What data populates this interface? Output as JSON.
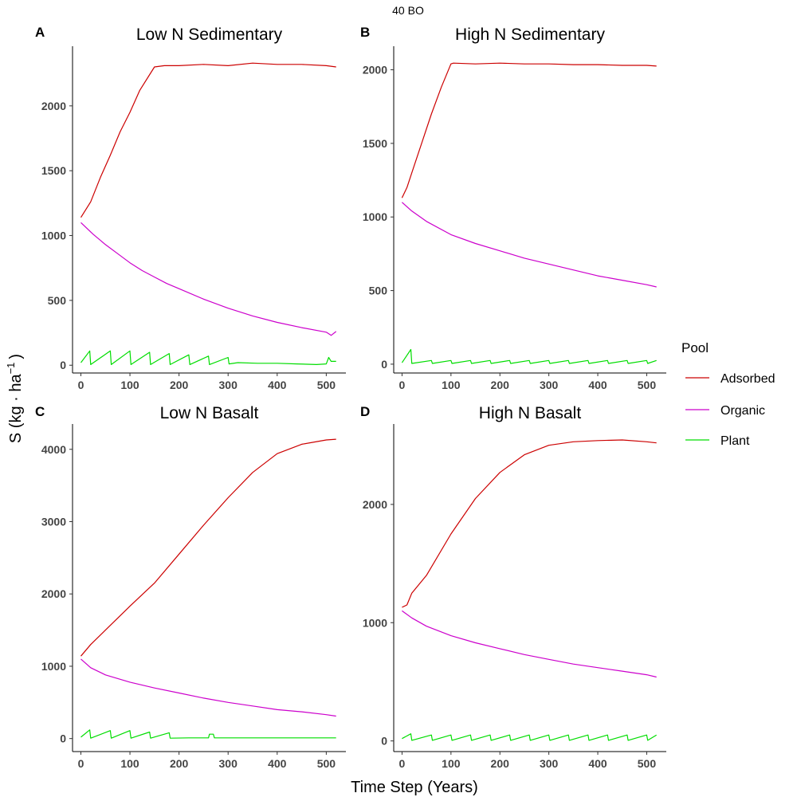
{
  "figure": {
    "supertitle": "40 BO",
    "xlabel": "Time Step (Years)",
    "ylabel_main": "S (kg · ha",
    "ylabel_sup": "−1",
    "ylabel_close": ")"
  },
  "legend": {
    "title": "Pool",
    "items": [
      {
        "label": "Adsorbed",
        "color": "#cc0000"
      },
      {
        "label": "Organic",
        "color": "#cc00cc"
      },
      {
        "label": "Plant",
        "color": "#00dd00"
      }
    ]
  },
  "chart_data": [
    {
      "type": "line",
      "tag": "A",
      "title": "Low N Sedimentary",
      "xlim": [
        -17,
        540
      ],
      "ylim": [
        -60,
        2460
      ],
      "xticks": [
        0,
        100,
        200,
        300,
        400,
        500
      ],
      "yticks": [
        0,
        500,
        1000,
        1500,
        2000
      ],
      "series": [
        {
          "name": "Adsorbed",
          "x": [
            0,
            20,
            40,
            60,
            80,
            100,
            120,
            150,
            170,
            200,
            250,
            300,
            350,
            400,
            450,
            500,
            520
          ],
          "y": [
            1140,
            1260,
            1450,
            1620,
            1800,
            1950,
            2120,
            2300,
            2310,
            2310,
            2320,
            2310,
            2330,
            2320,
            2320,
            2310,
            2300
          ]
        },
        {
          "name": "Organic",
          "x": [
            0,
            25,
            50,
            75,
            100,
            125,
            150,
            175,
            200,
            250,
            300,
            350,
            400,
            450,
            500,
            510,
            520
          ],
          "y": [
            1100,
            1010,
            930,
            860,
            790,
            730,
            680,
            630,
            590,
            510,
            440,
            380,
            330,
            290,
            255,
            230,
            260
          ]
        },
        {
          "name": "Plant",
          "x": [
            0,
            18,
            20,
            60,
            62,
            100,
            102,
            140,
            142,
            180,
            182,
            220,
            222,
            260,
            262,
            300,
            302,
            320,
            360,
            400,
            440,
            480,
            500,
            505,
            510,
            520
          ],
          "y": [
            20,
            110,
            5,
            110,
            5,
            110,
            5,
            100,
            5,
            90,
            5,
            80,
            5,
            70,
            5,
            60,
            10,
            20,
            15,
            15,
            10,
            5,
            10,
            60,
            30,
            30
          ]
        }
      ]
    },
    {
      "type": "line",
      "tag": "B",
      "title": "High N Sedimentary",
      "xlim": [
        -17,
        540
      ],
      "ylim": [
        -60,
        2160
      ],
      "xticks": [
        0,
        100,
        200,
        300,
        400,
        500
      ],
      "yticks": [
        0,
        500,
        1000,
        1500,
        2000
      ],
      "series": [
        {
          "name": "Adsorbed",
          "x": [
            0,
            10,
            20,
            40,
            60,
            80,
            100,
            105,
            150,
            200,
            250,
            300,
            350,
            400,
            450,
            500,
            520
          ],
          "y": [
            1130,
            1200,
            1300,
            1500,
            1700,
            1880,
            2040,
            2045,
            2040,
            2045,
            2040,
            2040,
            2035,
            2035,
            2030,
            2030,
            2025
          ]
        },
        {
          "name": "Organic",
          "x": [
            0,
            20,
            50,
            100,
            150,
            200,
            250,
            300,
            350,
            400,
            450,
            500,
            520
          ],
          "y": [
            1100,
            1040,
            970,
            880,
            820,
            770,
            720,
            680,
            640,
            600,
            570,
            540,
            525
          ]
        },
        {
          "name": "Plant",
          "x": [
            0,
            18,
            20,
            60,
            62,
            100,
            102,
            140,
            142,
            180,
            182,
            220,
            222,
            260,
            262,
            300,
            302,
            340,
            342,
            380,
            382,
            420,
            422,
            460,
            462,
            500,
            502,
            520
          ],
          "y": [
            10,
            100,
            5,
            25,
            5,
            25,
            5,
            25,
            5,
            25,
            5,
            25,
            5,
            25,
            5,
            25,
            5,
            25,
            5,
            25,
            5,
            25,
            5,
            25,
            5,
            25,
            5,
            25
          ]
        }
      ]
    },
    {
      "type": "line",
      "tag": "C",
      "title": "Low N Basalt",
      "xlim": [
        -17,
        540
      ],
      "ylim": [
        -180,
        4350
      ],
      "xticks": [
        0,
        100,
        200,
        300,
        400,
        500
      ],
      "yticks": [
        0,
        1000,
        2000,
        3000,
        4000
      ],
      "series": [
        {
          "name": "Adsorbed",
          "x": [
            0,
            20,
            50,
            100,
            150,
            200,
            250,
            300,
            350,
            400,
            450,
            500,
            520
          ],
          "y": [
            1140,
            1300,
            1500,
            1830,
            2150,
            2550,
            2950,
            3330,
            3680,
            3940,
            4070,
            4130,
            4140
          ]
        },
        {
          "name": "Organic",
          "x": [
            0,
            20,
            50,
            100,
            150,
            200,
            250,
            300,
            350,
            400,
            450,
            500,
            520
          ],
          "y": [
            1100,
            980,
            880,
            780,
            700,
            630,
            560,
            500,
            450,
            400,
            370,
            330,
            310
          ]
        },
        {
          "name": "Plant",
          "x": [
            0,
            18,
            20,
            60,
            62,
            100,
            102,
            140,
            142,
            180,
            182,
            220,
            222,
            260,
            262,
            270,
            272,
            300,
            350,
            400,
            450,
            500,
            520
          ],
          "y": [
            20,
            120,
            5,
            110,
            5,
            110,
            5,
            90,
            5,
            80,
            5,
            10,
            10,
            10,
            60,
            60,
            10,
            10,
            10,
            10,
            10,
            10,
            10
          ]
        }
      ]
    },
    {
      "type": "line",
      "tag": "D",
      "title": "High N Basalt",
      "xlim": [
        -17,
        540
      ],
      "ylim": [
        -90,
        2680
      ],
      "xticks": [
        0,
        100,
        200,
        300,
        400,
        500
      ],
      "yticks": [
        0,
        1000,
        2000
      ],
      "series": [
        {
          "name": "Adsorbed",
          "x": [
            0,
            10,
            20,
            50,
            100,
            150,
            200,
            250,
            300,
            350,
            400,
            450,
            500,
            520
          ],
          "y": [
            1130,
            1150,
            1250,
            1400,
            1750,
            2050,
            2270,
            2420,
            2500,
            2530,
            2540,
            2545,
            2530,
            2520
          ]
        },
        {
          "name": "Organic",
          "x": [
            0,
            20,
            50,
            100,
            150,
            200,
            250,
            300,
            350,
            400,
            450,
            500,
            520
          ],
          "y": [
            1100,
            1040,
            970,
            890,
            830,
            780,
            730,
            690,
            650,
            620,
            590,
            560,
            540
          ]
        },
        {
          "name": "Plant",
          "x": [
            0,
            18,
            20,
            60,
            62,
            100,
            102,
            140,
            142,
            180,
            182,
            220,
            222,
            260,
            262,
            300,
            302,
            340,
            342,
            380,
            382,
            420,
            422,
            460,
            462,
            500,
            502,
            520
          ],
          "y": [
            20,
            60,
            5,
            50,
            5,
            50,
            5,
            50,
            5,
            50,
            5,
            50,
            5,
            50,
            5,
            50,
            5,
            50,
            5,
            50,
            5,
            50,
            5,
            50,
            5,
            50,
            5,
            50
          ]
        }
      ]
    }
  ]
}
